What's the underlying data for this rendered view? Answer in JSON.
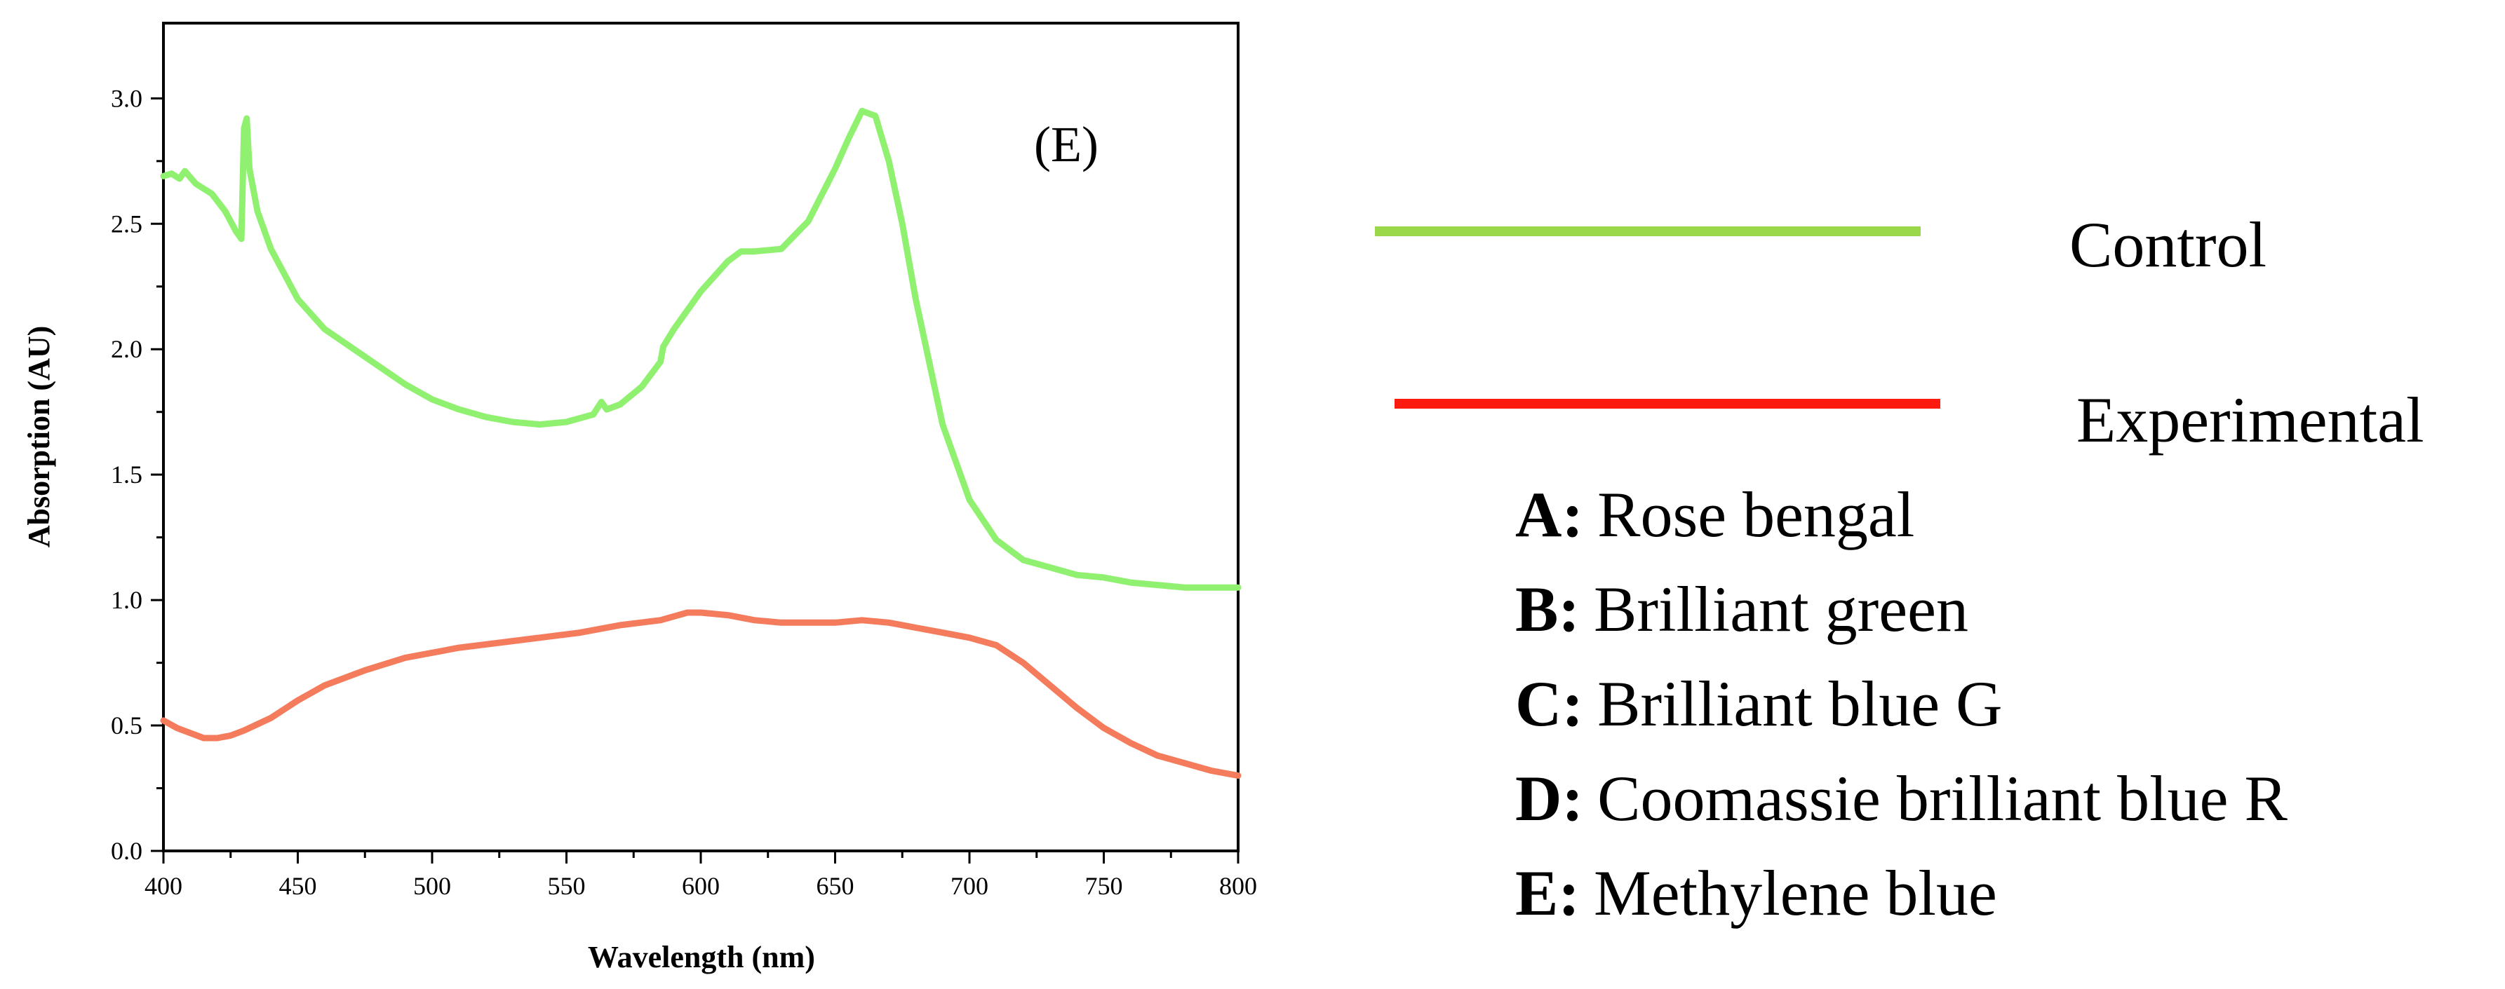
{
  "chart_data": {
    "type": "line",
    "title": "",
    "panel_label": "(E)",
    "xlabel": "Wavelength (nm)",
    "ylabel": "Absorption (AU)",
    "xlim": [
      400,
      800
    ],
    "ylim": [
      0,
      3.3
    ],
    "xticks": [
      400,
      450,
      500,
      550,
      600,
      650,
      700,
      750,
      800
    ],
    "xtick_labels": [
      "400",
      "450",
      "500",
      "550",
      "600",
      "650",
      "700",
      "750",
      "800"
    ],
    "yticks": [
      0,
      0.5,
      1.0,
      1.5,
      2.0,
      2.5,
      3.0
    ],
    "ytick_labels": [
      "0.0",
      "0.5",
      "1.0",
      "1.5",
      "2.0",
      "2.5",
      "3.0"
    ],
    "grid": false,
    "series": [
      {
        "name": "Control",
        "color": "#90f070",
        "x": [
          400,
          403,
          406,
          408,
          412,
          418,
          423,
          427,
          429,
          430,
          431,
          432,
          435,
          440,
          450,
          460,
          475,
          490,
          500,
          510,
          520,
          530,
          540,
          550,
          560,
          563,
          565,
          570,
          578,
          585,
          586,
          590,
          600,
          610,
          615,
          620,
          630,
          640,
          650,
          655,
          660,
          665,
          670,
          675,
          680,
          690,
          700,
          710,
          720,
          730,
          740,
          750,
          760,
          770,
          780,
          790,
          800
        ],
        "y": [
          2.69,
          2.7,
          2.68,
          2.71,
          2.66,
          2.62,
          2.55,
          2.47,
          2.44,
          2.88,
          2.92,
          2.72,
          2.55,
          2.4,
          2.2,
          2.08,
          1.97,
          1.86,
          1.8,
          1.76,
          1.73,
          1.71,
          1.7,
          1.71,
          1.74,
          1.79,
          1.76,
          1.78,
          1.85,
          1.95,
          2.01,
          2.08,
          2.23,
          2.35,
          2.39,
          2.39,
          2.4,
          2.51,
          2.72,
          2.84,
          2.95,
          2.93,
          2.75,
          2.5,
          2.2,
          1.7,
          1.4,
          1.24,
          1.16,
          1.13,
          1.1,
          1.09,
          1.07,
          1.06,
          1.05,
          1.05,
          1.05
        ]
      },
      {
        "name": "Experimental",
        "color": "#f47c5c",
        "x": [
          400,
          405,
          410,
          415,
          420,
          425,
          430,
          440,
          450,
          460,
          475,
          490,
          500,
          510,
          525,
          540,
          555,
          570,
          585,
          595,
          600,
          610,
          620,
          630,
          640,
          650,
          660,
          670,
          680,
          690,
          700,
          710,
          720,
          730,
          740,
          750,
          760,
          770,
          780,
          790,
          800
        ],
        "y": [
          0.52,
          0.49,
          0.47,
          0.45,
          0.45,
          0.46,
          0.48,
          0.53,
          0.6,
          0.66,
          0.72,
          0.77,
          0.79,
          0.81,
          0.83,
          0.85,
          0.87,
          0.9,
          0.92,
          0.95,
          0.95,
          0.94,
          0.92,
          0.91,
          0.91,
          0.91,
          0.92,
          0.91,
          0.89,
          0.87,
          0.85,
          0.82,
          0.75,
          0.66,
          0.57,
          0.49,
          0.43,
          0.38,
          0.35,
          0.32,
          0.3
        ]
      }
    ]
  },
  "legend": {
    "items": [
      {
        "label": "Control",
        "color": "#9ad84a"
      },
      {
        "label": "Experimental",
        "color": "#ff1a10"
      }
    ]
  },
  "key": {
    "items": [
      {
        "letter": "A:",
        "name": "Rose bengal"
      },
      {
        "letter": "B:",
        "name": "Brilliant green"
      },
      {
        "letter": "C:",
        "name": "Brilliant blue G"
      },
      {
        "letter": "D:",
        "name": "Coomassie brilliant blue R"
      },
      {
        "letter": "E:",
        "name": "Methylene blue"
      }
    ]
  }
}
